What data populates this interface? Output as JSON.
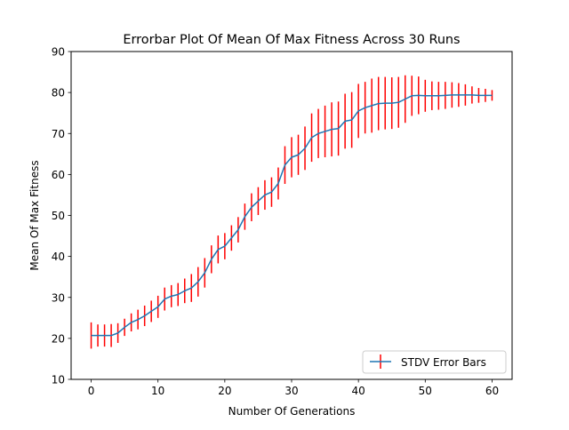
{
  "chart_data": {
    "type": "line",
    "title": "Errorbar Plot Of Mean Of Max Fitness Across 30 Runs",
    "xlabel": "Number Of Generations",
    "ylabel": "Mean Of Max Fitness",
    "xlim": [
      -3,
      63
    ],
    "ylim": [
      10,
      90
    ],
    "xticks": [
      0,
      10,
      20,
      30,
      40,
      50,
      60
    ],
    "yticks": [
      10,
      20,
      30,
      40,
      50,
      60,
      70,
      80,
      90
    ],
    "grid": false,
    "legend": {
      "position": "bottom-right",
      "entries": [
        "STDV Error Bars"
      ]
    },
    "series": [
      {
        "name": "STDV Error Bars",
        "line_color": "#1f77b4",
        "errorbar_color": "#ff0000",
        "x": [
          0,
          1,
          2,
          3,
          4,
          5,
          6,
          7,
          8,
          9,
          10,
          11,
          12,
          13,
          14,
          15,
          16,
          17,
          18,
          19,
          20,
          21,
          22,
          23,
          24,
          25,
          26,
          27,
          28,
          29,
          30,
          31,
          32,
          33,
          34,
          35,
          36,
          37,
          38,
          39,
          40,
          41,
          42,
          43,
          44,
          45,
          46,
          47,
          48,
          49,
          50,
          51,
          52,
          53,
          54,
          55,
          56,
          57,
          58,
          59,
          60
        ],
        "y": [
          20.7,
          20.7,
          20.7,
          20.7,
          21.3,
          22.7,
          23.9,
          24.6,
          25.5,
          26.6,
          27.7,
          29.6,
          30.3,
          30.7,
          31.6,
          32.3,
          33.8,
          36.0,
          39.3,
          41.7,
          42.5,
          44.5,
          46.5,
          49.7,
          52.0,
          53.5,
          55.0,
          55.7,
          57.8,
          62.3,
          64.2,
          64.8,
          66.4,
          69.0,
          70.0,
          70.5,
          71.0,
          71.2,
          73.0,
          73.3,
          75.5,
          76.3,
          76.8,
          77.3,
          77.4,
          77.4,
          77.6,
          78.4,
          79.2,
          79.3,
          79.2,
          79.2,
          79.2,
          79.3,
          79.4,
          79.4,
          79.4,
          79.4,
          79.3,
          79.3,
          79.3
        ],
        "yerr": [
          3.2,
          2.7,
          2.7,
          2.8,
          2.4,
          2.1,
          2.2,
          2.4,
          2.5,
          2.6,
          2.7,
          2.8,
          2.7,
          2.8,
          3.0,
          3.4,
          3.6,
          3.6,
          3.4,
          3.4,
          3.2,
          3.1,
          3.1,
          3.2,
          3.4,
          3.4,
          3.6,
          3.6,
          3.9,
          4.6,
          4.9,
          4.9,
          5.3,
          5.9,
          6.0,
          6.3,
          6.6,
          6.6,
          6.7,
          6.8,
          6.6,
          6.3,
          6.6,
          6.5,
          6.4,
          6.3,
          6.2,
          5.8,
          4.9,
          4.6,
          3.9,
          3.5,
          3.4,
          3.3,
          3.1,
          2.9,
          2.6,
          2.1,
          1.8,
          1.6,
          1.3
        ]
      }
    ]
  }
}
